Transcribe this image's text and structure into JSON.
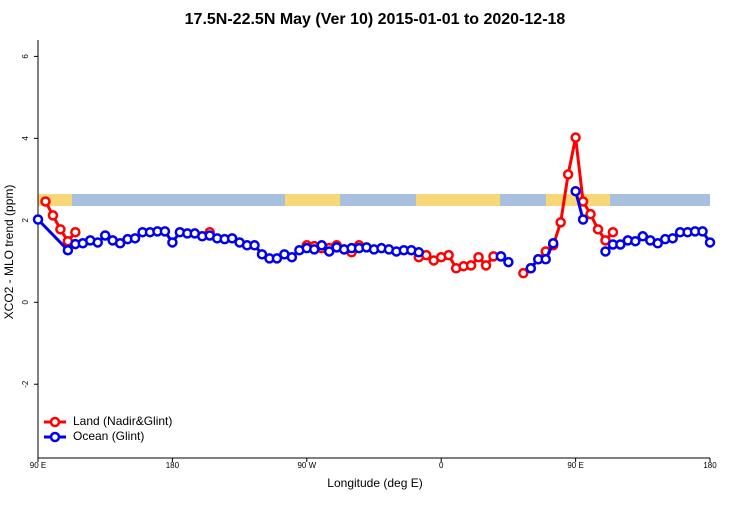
{
  "chart_data": {
    "type": "line",
    "title": "17.5N-22.5N May (Ver 10)   2015-01-01 to 2020-12-18",
    "x_label": "Longitude (deg E)",
    "y_label": "XCO2 - MLO trend (ppm)",
    "xlim": [
      90,
      540
    ],
    "xticks": [
      {
        "value": 90,
        "label": "90 E"
      },
      180,
      {
        "value": 270,
        "label": "90 W"
      },
      {
        "value": 360,
        "label": "0"
      },
      {
        "value": 450,
        "label": "90 E"
      },
      {
        "value": 540,
        "label": "180"
      }
    ],
    "ylim": [
      -3.8,
      6.4
    ],
    "yticks": [
      -2,
      0,
      2,
      4,
      6
    ],
    "legend": "bottom-left",
    "series": [
      {
        "name": "Land (Nadir&Glint)",
        "color": "#ff0000",
        "x": [
          95,
          100,
          105,
          110,
          115,
          120,
          205,
          210,
          270,
          275,
          280,
          285,
          290,
          295,
          300,
          305,
          310,
          345,
          350,
          355,
          360,
          365,
          370,
          375,
          380,
          385,
          390,
          395,
          400,
          405,
          415,
          420,
          425,
          430,
          435,
          440,
          445,
          450,
          455,
          460,
          465,
          470,
          475
        ],
        "values": [
          2.46,
          2.12,
          1.78,
          1.49,
          1.71,
          null,
          1.71,
          null,
          1.39,
          1.37,
          1.32,
          1.32,
          1.39,
          1.29,
          1.22,
          1.39,
          null,
          1.1,
          1.15,
          1.02,
          1.1,
          1.15,
          0.83,
          0.88,
          0.9,
          1.1,
          0.9,
          1.12,
          1.12,
          null,
          0.71,
          0.83,
          1.05,
          1.24,
          1.39,
          1.95,
          3.12,
          4.02,
          2.46,
          2.15,
          1.78,
          1.51,
          1.71
        ]
      },
      {
        "name": "Ocean (Glint)",
        "color": "#0000ee",
        "x": [
          90,
          110,
          115,
          120,
          125,
          130,
          135,
          140,
          145,
          150,
          155,
          160,
          165,
          170,
          175,
          180,
          185,
          190,
          195,
          200,
          205,
          210,
          215,
          220,
          225,
          230,
          235,
          240,
          245,
          250,
          255,
          260,
          265,
          270,
          275,
          280,
          285,
          290,
          295,
          300,
          305,
          310,
          315,
          320,
          325,
          330,
          335,
          340,
          345,
          350,
          400,
          405,
          410,
          420,
          425,
          430,
          435,
          440,
          450,
          455,
          460,
          470,
          475,
          480,
          485,
          490,
          495,
          500,
          505,
          510,
          515,
          520,
          525,
          530,
          535,
          540
        ],
        "values": [
          2.02,
          1.27,
          1.42,
          1.44,
          1.51,
          1.46,
          1.63,
          1.51,
          1.44,
          1.54,
          1.56,
          1.71,
          1.71,
          1.73,
          1.73,
          1.46,
          1.71,
          1.68,
          1.68,
          1.61,
          1.63,
          1.56,
          1.54,
          1.56,
          1.46,
          1.39,
          1.39,
          1.17,
          1.07,
          1.07,
          1.17,
          1.1,
          1.27,
          1.32,
          1.29,
          1.39,
          1.24,
          1.34,
          1.29,
          1.32,
          1.32,
          1.34,
          1.29,
          1.32,
          1.29,
          1.24,
          1.27,
          1.27,
          1.22,
          null,
          1.12,
          0.98,
          null,
          0.83,
          1.05,
          1.05,
          1.44,
          null,
          2.71,
          2.02,
          null,
          1.24,
          1.41,
          1.41,
          1.51,
          1.49,
          1.61,
          1.51,
          1.44,
          1.54,
          1.56,
          1.71,
          1.71,
          1.73,
          1.73,
          1.46
        ]
      }
    ]
  }
}
